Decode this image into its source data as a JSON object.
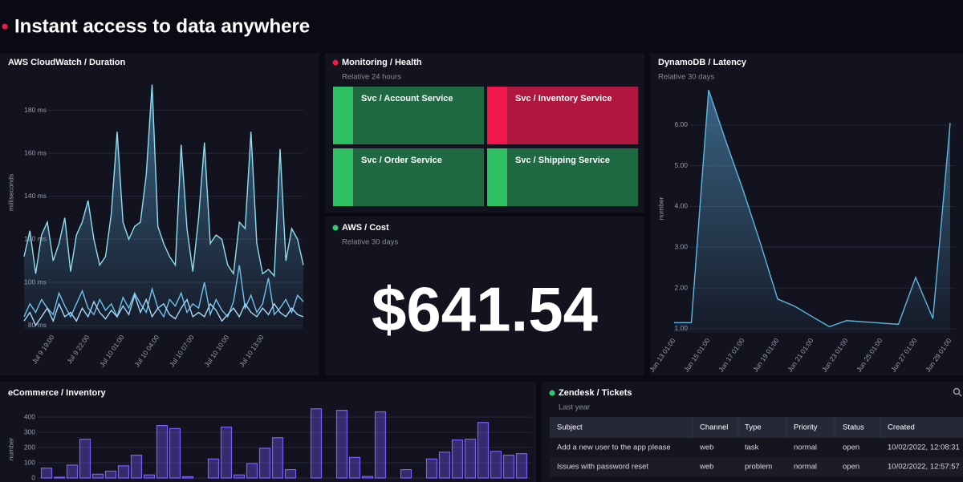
{
  "header": {
    "title": "Instant access to data anywhere",
    "dot_color": "#f0184a"
  },
  "chart_data": [
    {
      "type": "line",
      "title": "AWS CloudWatch / Duration",
      "y_label": "milliseconds",
      "categories": [
        null,
        null,
        null,
        null,
        null,
        "Jul 9 19:00",
        null,
        null,
        null,
        null,
        null,
        "Jul 9 22:00",
        null,
        null,
        null,
        null,
        null,
        "Jul 10 01:00",
        null,
        null,
        null,
        null,
        null,
        "Jul 10 04:00",
        null,
        null,
        null,
        null,
        null,
        "Jul 10 07:00",
        null,
        null,
        null,
        null,
        null,
        "Jul 10 10:00",
        null,
        null,
        null,
        null,
        null,
        "Jul 10 13:00",
        null,
        null,
        null,
        null,
        null,
        null,
        null
      ],
      "series": [
        {
          "color": "#8ee0f0",
          "area": true,
          "values": [
            112,
            124,
            104,
            122,
            128,
            110,
            118,
            130,
            105,
            122,
            128,
            138,
            120,
            108,
            112,
            132,
            170,
            128,
            120,
            126,
            128,
            150,
            192,
            126,
            118,
            112,
            108,
            164,
            125,
            105,
            130,
            165,
            118,
            122,
            120,
            108,
            104,
            128,
            125,
            170,
            118,
            104,
            106,
            103,
            162,
            110,
            125,
            120,
            108
          ]
        },
        {
          "color": "#6cc3ee",
          "values": [
            84,
            90,
            86,
            92,
            88,
            85,
            95,
            89,
            84,
            90,
            96,
            88,
            85,
            92,
            87,
            90,
            84,
            93,
            88,
            95,
            90,
            86,
            97,
            88,
            84,
            92,
            89,
            95,
            86,
            90,
            88,
            100,
            85,
            92,
            87,
            84,
            91,
            108,
            88,
            94,
            86,
            90,
            102,
            85,
            88,
            92,
            86,
            94,
            91
          ]
        },
        {
          "color": "#a5d8f7",
          "values": [
            82,
            86,
            80,
            84,
            88,
            82,
            90,
            84,
            86,
            82,
            88,
            84,
            91,
            86,
            83,
            87,
            84,
            89,
            85,
            94,
            86,
            92,
            84,
            88,
            90,
            85,
            83,
            88,
            92,
            84,
            86,
            84,
            90,
            87,
            82,
            85,
            88,
            84,
            90,
            86,
            84,
            88,
            85,
            90,
            86,
            84,
            88,
            85,
            84
          ]
        }
      ],
      "ylim": [
        78,
        194
      ],
      "yticks": [
        {
          "value": 80,
          "label": "80 ms"
        },
        {
          "value": 100,
          "label": "100 ms"
        },
        {
          "value": 120,
          "label": "120 ms"
        },
        {
          "value": 140,
          "label": "140 ms"
        },
        {
          "value": 160,
          "label": "160 ms"
        },
        {
          "value": 180,
          "label": "180 ms"
        }
      ],
      "grid": true
    },
    {
      "type": "line",
      "title": "DynamoDB / Latency",
      "subtitle": "Relative 30 days",
      "y_label": "number",
      "categories": [
        "Jun 13 01:00",
        null,
        "Jun 15 01:00",
        null,
        "Jun 17 01:00",
        null,
        "Jun 19 01:00",
        null,
        "Jun 21 01:00",
        null,
        "Jun 23 01:00",
        null,
        "Jun 25 01:00",
        null,
        "Jun 27 01:00",
        null,
        "Jun 29 01:00"
      ],
      "series": [
        {
          "color": "#5cb8e0",
          "area": true,
          "values": [
            1.15,
            1.15,
            6.86,
            5.6,
            4.4,
            3.1,
            1.73,
            1.55,
            1.3,
            1.05,
            1.2,
            1.17,
            1.14,
            1.11,
            2.26,
            1.25,
            6.05
          ]
        }
      ],
      "ylim": [
        0.9,
        7
      ],
      "yticks": [
        {
          "value": 1,
          "label": "1.00"
        },
        {
          "value": 2,
          "label": "2.00"
        },
        {
          "value": 3,
          "label": "3.00"
        },
        {
          "value": 4,
          "label": "4.00"
        },
        {
          "value": 5,
          "label": "5.00"
        },
        {
          "value": 6,
          "label": "6.00"
        }
      ],
      "grid": true
    },
    {
      "type": "bar",
      "title": "eCommerce / Inventory",
      "y_label": "number",
      "color": "#7b5cff",
      "values": [
        65,
        5,
        85,
        255,
        25,
        45,
        80,
        150,
        20,
        345,
        325,
        8,
        0,
        125,
        335,
        20,
        95,
        195,
        265,
        55,
        0,
        455,
        0,
        445,
        135,
        10,
        435,
        0,
        55,
        0,
        125,
        170,
        250,
        255,
        365,
        175,
        150,
        160
      ],
      "ylim": [
        0,
        480
      ],
      "yticks": [
        0,
        100,
        200,
        300,
        400
      ],
      "grid": true
    }
  ],
  "health": {
    "title": "Monitoring / Health",
    "subtitle": "Relative 24 hours",
    "dot_color": "#f0184a",
    "tiles": [
      {
        "label": "Svc / Account Service",
        "color": "#1f6a43",
        "accent": "#2dbf62"
      },
      {
        "label": "Svc / Inventory Service",
        "color": "#b0173f",
        "accent": "#f0184a"
      },
      {
        "label": "Svc / Order Service",
        "color": "#1f6a43",
        "accent": "#2dbf62"
      },
      {
        "label": "Svc / Shipping Service",
        "color": "#1f6a43",
        "accent": "#2dbf62"
      }
    ]
  },
  "cost": {
    "title": "AWS / Cost",
    "subtitle": "Relative 30 days",
    "dot_color": "#2ecc71",
    "value": "$641.54"
  },
  "tickets": {
    "title": "Zendesk / Tickets",
    "subtitle": "Last year",
    "dot_color": "#2ecc71",
    "columns": [
      "Subject",
      "Channel",
      "Type",
      "Priority",
      "Status",
      "Created"
    ],
    "rows": [
      [
        "Add a new user to the app please",
        "web",
        "task",
        "normal",
        "open",
        "10/02/2022, 12:08:31"
      ],
      [
        "Issues with password reset",
        "web",
        "problem",
        "normal",
        "open",
        "10/02/2022, 12:57:57"
      ]
    ]
  }
}
